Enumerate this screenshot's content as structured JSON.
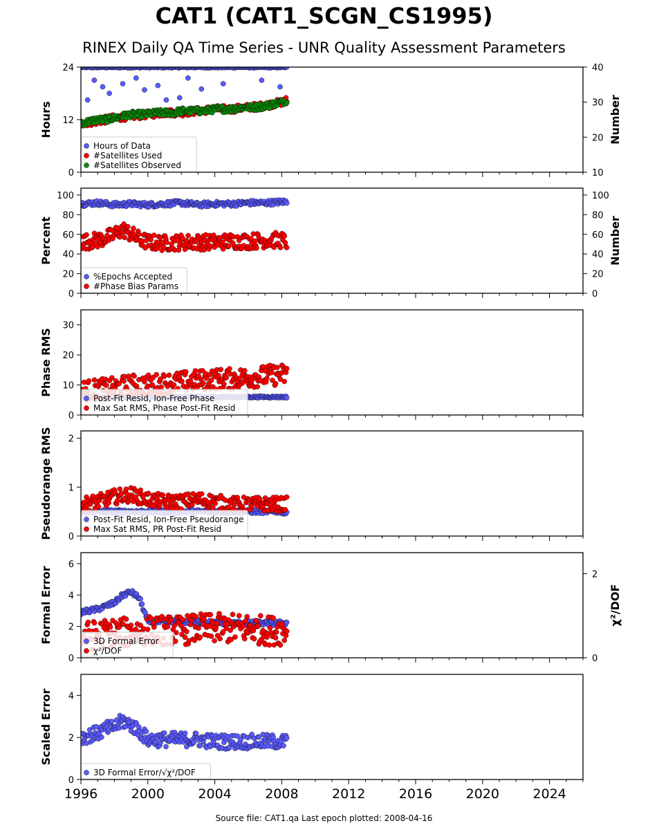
{
  "title": "CAT1 (CAT1_SCGN_CS1995)",
  "subtitle": "RINEX Daily QA Time Series - UNR Quality Assessment Parameters",
  "footer": "Source file: CAT1.qa Last epoch plotted: 2008-04-16",
  "colors": {
    "blue": "#5a5aff",
    "red": "#ff0000",
    "green": "#0a8a0a"
  },
  "chart_data": [
    {
      "type": "scatter",
      "ylabel": "Hours",
      "y2label": "Number",
      "xlim": [
        1996,
        2026
      ],
      "ylim": [
        0,
        24
      ],
      "y2lim": [
        10,
        40
      ],
      "yticks": [
        "0",
        "12",
        "24"
      ],
      "y2ticks": [
        "10",
        "20",
        "30",
        "40"
      ],
      "legend": "bottom-left",
      "series": [
        {
          "name": "Hours of Data",
          "axis": "left",
          "color": "#5a5aff",
          "x": [
            1996.0,
            1997.0,
            1997.5,
            1998.0,
            1999.0,
            2000.0,
            2001.0,
            2002.0,
            2003.0,
            2004.0,
            2005.0,
            2006.0,
            2007.0,
            2008.0,
            2008.3
          ],
          "y": [
            24,
            24,
            24,
            24,
            24,
            24,
            24,
            24,
            24,
            24,
            24,
            24,
            24,
            24,
            24
          ],
          "outliers_x": [
            1996.4,
            1996.8,
            1997.3,
            1997.7,
            1998.5,
            1999.3,
            1999.8,
            2000.6,
            2001.1,
            2001.9,
            2002.4,
            2003.2,
            2004.5,
            2006.8,
            2007.9
          ],
          "outliers_y": [
            16.5,
            21.0,
            19.5,
            18.0,
            20.2,
            21.5,
            18.8,
            19.8,
            16.5,
            17.0,
            21.5,
            19.0,
            20.2,
            21.0,
            19.5
          ]
        },
        {
          "name": "#Satellites Used",
          "axis": "right",
          "color": "#ff0000",
          "x": [
            1996.0,
            1997.0,
            1998.0,
            1999.0,
            2000.0,
            2001.0,
            2002.0,
            2003.0,
            2004.0,
            2005.0,
            2006.0,
            2007.0,
            2008.0,
            2008.3
          ],
          "y": [
            24,
            24.5,
            25.5,
            26,
            26.5,
            27,
            27,
            27.5,
            28,
            28,
            28.5,
            29,
            30,
            30.5
          ]
        },
        {
          "name": "#Satellites Observed",
          "axis": "right",
          "color": "#0a8a0a",
          "x": [
            1996.0,
            1996.5,
            1997.0,
            1997.5,
            1998.0,
            1998.5,
            1999.0,
            1999.5,
            2000.0,
            2000.5,
            2001.0,
            2001.5,
            2002.0,
            2002.5,
            2003.0,
            2003.5,
            2004.0,
            2004.5,
            2005.0,
            2005.5,
            2006.0,
            2006.5,
            2007.0,
            2007.5,
            2008.0,
            2008.3
          ],
          "y": [
            24,
            24.5,
            25,
            25,
            25.5,
            26,
            26.5,
            26.5,
            26.5,
            27,
            27,
            27,
            27.5,
            27.5,
            27.5,
            27.5,
            28,
            28,
            28,
            28.5,
            28.5,
            28.5,
            29,
            29.5,
            30,
            30.5
          ]
        }
      ]
    },
    {
      "type": "scatter",
      "ylabel": "Percent",
      "y2label": "Number",
      "xlim": [
        1996,
        2026
      ],
      "ylim": [
        0,
        107
      ],
      "y2lim": [
        0,
        107
      ],
      "yticks": [
        "0",
        "20",
        "40",
        "60",
        "80",
        "100"
      ],
      "y2ticks": [
        "0",
        "20",
        "40",
        "60",
        "80",
        "100"
      ],
      "legend": "bottom-left",
      "series": [
        {
          "name": "%Epochs Accepted",
          "axis": "left",
          "color": "#5a5aff",
          "x": [
            1996.0,
            1997.0,
            1998.0,
            1999.0,
            2000.0,
            2001.0,
            2002.0,
            2003.0,
            2004.0,
            2005.0,
            2006.0,
            2007.0,
            2008.0,
            2008.3
          ],
          "y": [
            91,
            92,
            90,
            91,
            90,
            91,
            92,
            90,
            91,
            91,
            92,
            92,
            93,
            93
          ]
        },
        {
          "name": "#Phase Bias Params",
          "axis": "right",
          "color": "#ff0000",
          "x": [
            1996.0,
            1997.0,
            1997.8,
            1998.5,
            1999.0,
            1999.5,
            2000.0,
            2001.0,
            2002.0,
            2003.0,
            2004.0,
            2005.0,
            2006.0,
            2007.0,
            2008.0,
            2008.3
          ],
          "y": [
            52,
            54,
            58,
            65,
            60,
            55,
            52,
            51,
            52,
            52,
            52,
            53,
            53,
            54,
            54,
            52
          ]
        }
      ]
    },
    {
      "type": "scatter",
      "ylabel": "Phase RMS",
      "xlim": [
        1996,
        2026
      ],
      "ylim": [
        0,
        35
      ],
      "yticks": [
        "0",
        "10",
        "20",
        "30"
      ],
      "legend": "bottom-left",
      "series": [
        {
          "name": "Post-Fit Resid, Ion-Free Phase",
          "color": "#5a5aff",
          "x": [
            1996.0,
            1998.0,
            2000.0,
            2002.0,
            2004.0,
            2006.0,
            2008.0,
            2008.3
          ],
          "y": [
            6,
            6,
            6,
            6,
            6,
            6,
            6,
            6
          ]
        },
        {
          "name": "Max Sat RMS, Phase Post-Fit Resid",
          "color": "#ff0000",
          "x": [
            1996.0,
            1997.0,
            1998.0,
            1999.0,
            2000.0,
            2001.0,
            2002.0,
            2003.0,
            2004.0,
            2005.0,
            2006.0,
            2007.0,
            2008.0,
            2008.3
          ],
          "y": [
            8,
            8.5,
            9,
            10,
            10,
            10.5,
            11,
            11.5,
            12,
            12,
            12.5,
            13,
            13.5,
            13
          ]
        }
      ]
    },
    {
      "type": "scatter",
      "ylabel": "Pseudorange RMS",
      "xlim": [
        1996,
        2026
      ],
      "ylim": [
        0,
        2.15
      ],
      "yticks": [
        "0",
        "1",
        "2"
      ],
      "legend": "bottom-left",
      "series": [
        {
          "name": "Post-Fit Resid, Ion-Free Pseudorange",
          "color": "#5a5aff",
          "x": [
            1996.0,
            1998.0,
            2000.0,
            2002.0,
            2004.0,
            2006.0,
            2008.0,
            2008.3
          ],
          "y": [
            0.5,
            0.5,
            0.5,
            0.5,
            0.5,
            0.5,
            0.5,
            0.45
          ]
        },
        {
          "name": "Max Sat RMS, PR Post-Fit Resid",
          "color": "#ff0000",
          "x": [
            1996.0,
            1997.0,
            1998.0,
            1999.0,
            2000.0,
            2001.0,
            2002.0,
            2003.0,
            2004.0,
            2005.0,
            2006.0,
            2007.0,
            2008.0,
            2008.3
          ],
          "y": [
            0.65,
            0.7,
            0.8,
            0.85,
            0.75,
            0.7,
            0.7,
            0.75,
            0.7,
            0.65,
            0.65,
            0.65,
            0.65,
            0.65
          ]
        }
      ]
    },
    {
      "type": "scatter",
      "ylabel": "Formal Error",
      "y2label": "χ²/DOF",
      "xlim": [
        1996,
        2026
      ],
      "ylim": [
        0,
        6.7
      ],
      "y2lim": [
        0,
        2.5
      ],
      "yticks": [
        "0",
        "2",
        "4",
        "6"
      ],
      "y2ticks": [
        "0",
        "2"
      ],
      "legend": "bottom-left",
      "series": [
        {
          "name": "3D Formal Error",
          "axis": "left",
          "color": "#5a5aff",
          "x": [
            1996.0,
            1996.5,
            1997.0,
            1997.5,
            1998.0,
            1998.5,
            1999.0,
            1999.5,
            2000.0,
            2001.0,
            2002.0,
            2003.0,
            2004.0,
            2005.0,
            2006.0,
            2007.0,
            2008.0,
            2008.3
          ],
          "y": [
            2.9,
            3.0,
            3.1,
            3.3,
            3.5,
            4.0,
            4.2,
            3.8,
            2.3,
            2.3,
            2.3,
            2.3,
            2.2,
            2.2,
            2.2,
            2.2,
            2.2,
            2.2
          ]
        },
        {
          "name": "χ²/DOF",
          "axis": "right",
          "color": "#ff0000",
          "x": [
            1996.0,
            1997.0,
            1998.0,
            1999.0,
            2000.0,
            2001.0,
            2002.0,
            2003.0,
            2004.0,
            2005.0,
            2006.0,
            2007.0,
            2008.0,
            2008.3
          ],
          "y": [
            0.5,
            0.55,
            0.6,
            0.6,
            0.65,
            0.65,
            0.65,
            0.7,
            0.7,
            0.7,
            0.7,
            0.65,
            0.65,
            0.65
          ]
        }
      ]
    },
    {
      "type": "scatter",
      "ylabel": "Scaled Error",
      "xlim": [
        1996,
        2026
      ],
      "ylim": [
        0,
        5
      ],
      "yticks": [
        "0",
        "2",
        "4"
      ],
      "xticks": [
        "1996",
        "2000",
        "2004",
        "2008",
        "2012",
        "2016",
        "2020",
        "2024"
      ],
      "legend": "bottom-left",
      "series": [
        {
          "name": "3D Formal Error/√χ²/DOF",
          "color": "#5a5aff",
          "x": [
            1996.0,
            1996.5,
            1997.0,
            1997.5,
            1998.0,
            1998.5,
            1999.0,
            1999.5,
            2000.0,
            2001.0,
            2002.0,
            2003.0,
            2004.0,
            2005.0,
            2006.0,
            2007.0,
            2008.0,
            2008.3
          ],
          "y": [
            2.0,
            2.1,
            2.2,
            2.4,
            2.5,
            2.8,
            2.6,
            2.3,
            1.9,
            1.9,
            1.9,
            1.9,
            1.8,
            1.8,
            1.8,
            1.8,
            1.8,
            1.8
          ]
        }
      ]
    }
  ]
}
